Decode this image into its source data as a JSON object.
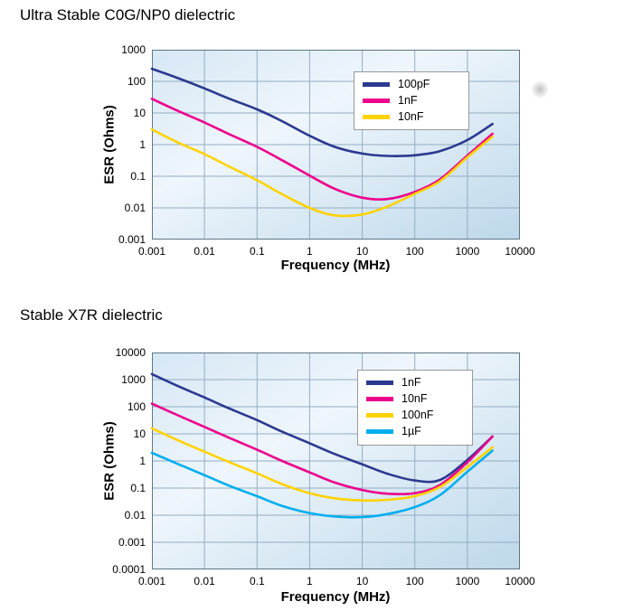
{
  "colors": {
    "plot_bg_start": "#d6e7f4",
    "plot_bg_mid": "#eff6fc",
    "plot_bg_end": "#bdd8ea",
    "grid": "#92adc2",
    "border": "#5d7686",
    "legend_border": "#999999",
    "legend_bg": "#ffffff",
    "text": "#000000"
  },
  "chart_data": [
    {
      "type": "line",
      "title": "Ultra Stable C0G/NP0 dielectric",
      "xlabel": "Frequency (MHz)",
      "ylabel": "ESR (Ohms)",
      "xscale": "log",
      "yscale": "log",
      "xlim": [
        0.001,
        10000
      ],
      "ylim": [
        0.001,
        1000
      ],
      "xtick_labels": [
        "0.001",
        "0.01",
        "0.1",
        "1",
        "10",
        "100",
        "1000",
        "10000"
      ],
      "ytick_labels": [
        "1000",
        "100",
        "10",
        "1",
        "0.1",
        "0.01",
        "0.001"
      ],
      "grid": true,
      "legend_position": "upper right",
      "series": [
        {
          "name": "100pF",
          "color": "#2b3990",
          "points": [
            [
              0.001,
              250
            ],
            [
              0.003,
              130
            ],
            [
              0.01,
              60
            ],
            [
              0.03,
              28
            ],
            [
              0.1,
              13
            ],
            [
              0.3,
              5.5
            ],
            [
              1,
              1.9
            ],
            [
              3,
              0.85
            ],
            [
              10,
              0.52
            ],
            [
              30,
              0.44
            ],
            [
              100,
              0.46
            ],
            [
              300,
              0.62
            ],
            [
              1000,
              1.4
            ],
            [
              3000,
              4.5
            ]
          ]
        },
        {
          "name": "1nF",
          "color": "#ec008c",
          "points": [
            [
              0.001,
              28
            ],
            [
              0.003,
              12
            ],
            [
              0.01,
              5
            ],
            [
              0.03,
              2.1
            ],
            [
              0.1,
              0.85
            ],
            [
              0.3,
              0.32
            ],
            [
              1,
              0.105
            ],
            [
              3,
              0.04
            ],
            [
              10,
              0.021
            ],
            [
              30,
              0.019
            ],
            [
              100,
              0.032
            ],
            [
              300,
              0.08
            ],
            [
              1000,
              0.45
            ],
            [
              3000,
              2.2
            ]
          ]
        },
        {
          "name": "10nF",
          "color": "#ffd200",
          "points": [
            [
              0.001,
              3
            ],
            [
              0.003,
              1.2
            ],
            [
              0.01,
              0.5
            ],
            [
              0.03,
              0.2
            ],
            [
              0.1,
              0.075
            ],
            [
              0.3,
              0.027
            ],
            [
              1,
              0.01
            ],
            [
              3,
              0.0058
            ],
            [
              10,
              0.0062
            ],
            [
              30,
              0.011
            ],
            [
              100,
              0.028
            ],
            [
              300,
              0.07
            ],
            [
              1000,
              0.4
            ],
            [
              3000,
              1.8
            ]
          ]
        }
      ]
    },
    {
      "type": "line",
      "title": "Stable X7R dielectric",
      "xlabel": "Frequency (MHz)",
      "ylabel": "ESR (Ohms)",
      "xscale": "log",
      "yscale": "log",
      "xlim": [
        0.001,
        10000
      ],
      "ylim": [
        0.0001,
        10000
      ],
      "xtick_labels": [
        "0.001",
        "0.01",
        "0.1",
        "1",
        "10",
        "100",
        "1000",
        "10000"
      ],
      "ytick_labels": [
        "10000",
        "1000",
        "100",
        "10",
        "1",
        "0.1",
        "0.01",
        "0.001",
        "0.0001"
      ],
      "grid": true,
      "legend_position": "upper right",
      "series": [
        {
          "name": "1nF",
          "color": "#2b3990",
          "points": [
            [
              0.001,
              1600
            ],
            [
              0.003,
              600
            ],
            [
              0.01,
              220
            ],
            [
              0.03,
              85
            ],
            [
              0.1,
              32
            ],
            [
              0.3,
              12
            ],
            [
              1,
              4.5
            ],
            [
              3,
              1.8
            ],
            [
              10,
              0.75
            ],
            [
              30,
              0.34
            ],
            [
              100,
              0.19
            ],
            [
              300,
              0.2
            ],
            [
              1000,
              1.1
            ],
            [
              3000,
              8
            ]
          ]
        },
        {
          "name": "10nF",
          "color": "#ec008c",
          "points": [
            [
              0.001,
              130
            ],
            [
              0.003,
              50
            ],
            [
              0.01,
              18
            ],
            [
              0.03,
              7
            ],
            [
              0.1,
              2.6
            ],
            [
              0.3,
              1.0
            ],
            [
              1,
              0.38
            ],
            [
              3,
              0.16
            ],
            [
              10,
              0.085
            ],
            [
              30,
              0.062
            ],
            [
              100,
              0.065
            ],
            [
              300,
              0.13
            ],
            [
              1000,
              0.9
            ],
            [
              3000,
              8
            ]
          ]
        },
        {
          "name": "100nF",
          "color": "#ffd200",
          "points": [
            [
              0.001,
              16
            ],
            [
              0.003,
              6
            ],
            [
              0.01,
              2.2
            ],
            [
              0.03,
              0.9
            ],
            [
              0.1,
              0.35
            ],
            [
              0.3,
              0.14
            ],
            [
              1,
              0.065
            ],
            [
              3,
              0.042
            ],
            [
              10,
              0.035
            ],
            [
              30,
              0.037
            ],
            [
              100,
              0.05
            ],
            [
              300,
              0.11
            ],
            [
              1000,
              0.6
            ],
            [
              3000,
              3.2
            ]
          ]
        },
        {
          "name": "1µF",
          "color": "#00aeef",
          "points": [
            [
              0.001,
              2
            ],
            [
              0.003,
              0.8
            ],
            [
              0.01,
              0.3
            ],
            [
              0.03,
              0.12
            ],
            [
              0.1,
              0.05
            ],
            [
              0.3,
              0.022
            ],
            [
              1,
              0.012
            ],
            [
              3,
              0.009
            ],
            [
              10,
              0.0085
            ],
            [
              30,
              0.011
            ],
            [
              100,
              0.02
            ],
            [
              300,
              0.055
            ],
            [
              1000,
              0.4
            ],
            [
              3000,
              2.4
            ]
          ]
        }
      ]
    }
  ]
}
